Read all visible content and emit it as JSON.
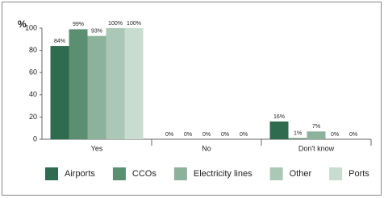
{
  "chart_data": {
    "type": "bar",
    "y_label": "%",
    "categories": [
      "Yes",
      "No",
      "Don't know"
    ],
    "series": [
      {
        "name": "Airports",
        "color": "#2f6b4f",
        "values": [
          84,
          0,
          16
        ],
        "value_labels": [
          "84%",
          "0%",
          "16%"
        ]
      },
      {
        "name": "CCOs",
        "color": "#5b8f72",
        "values": [
          99,
          0,
          1
        ],
        "value_labels": [
          "99%",
          "0%",
          "1%"
        ]
      },
      {
        "name": "Electricity lines",
        "color": "#8cb29b",
        "values": [
          93,
          0,
          7
        ],
        "value_labels": [
          "93%",
          "0%",
          "7%"
        ]
      },
      {
        "name": "Other",
        "color": "#aac8b5",
        "values": [
          100,
          0,
          0
        ],
        "value_labels": [
          "100%",
          "0%",
          "0%"
        ]
      },
      {
        "name": "Ports",
        "color": "#c8dccf",
        "values": [
          100,
          0,
          0
        ],
        "value_labels": [
          "100%",
          "0%",
          "0%"
        ]
      }
    ],
    "ylim": [
      0,
      100
    ],
    "yticks": [
      0,
      20,
      40,
      60,
      80,
      100
    ]
  }
}
